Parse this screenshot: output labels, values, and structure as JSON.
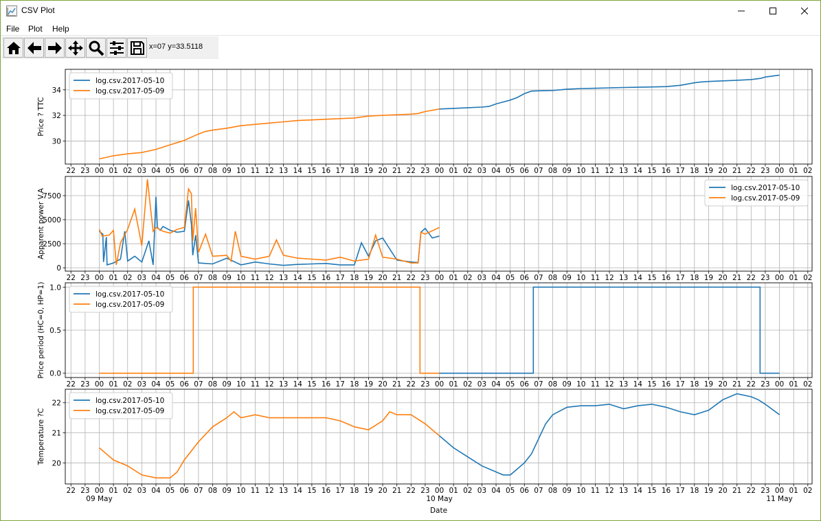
{
  "window": {
    "title": "CSV Plot",
    "controls": {
      "minimize": "minimize-icon",
      "maximize": "maximize-icon",
      "close": "close-icon"
    }
  },
  "menu": {
    "items": [
      "File",
      "Plot",
      "Help"
    ]
  },
  "toolbar": {
    "tools": [
      "home-icon",
      "back-arrow-icon",
      "forward-arrow-icon",
      "pan-icon",
      "zoom-icon",
      "subplots-config-icon",
      "save-icon"
    ],
    "coordinates": "x=07 y=33.5118"
  },
  "colors": {
    "series_2017_05_10": "#1f77b4",
    "series_2017_05_09": "#ff7f0e",
    "grid": "#b0b0b0",
    "window_border": "#7da33a"
  },
  "chart_data": [
    {
      "type": "line",
      "ylabel": "Price ? TTC",
      "ylim": [
        28.2,
        35.6
      ],
      "yticks": [
        30,
        32,
        34
      ],
      "ytick_labels": [
        "30",
        "32",
        "34"
      ],
      "grid": true,
      "legend": "top-left",
      "series": [
        {
          "name": "log.csv.2017-05-10",
          "color": "#1f77b4",
          "x": [
            24,
            25,
            26,
            27,
            27.5,
            28,
            28.5,
            29,
            29.5,
            30,
            30.5,
            31,
            31.5,
            32,
            33,
            34,
            35,
            36,
            37,
            38,
            39,
            40,
            41,
            42,
            42.4,
            43,
            44,
            45,
            46,
            46.7,
            47,
            48
          ],
          "y": [
            32.5,
            32.55,
            32.6,
            32.65,
            32.7,
            32.9,
            33.05,
            33.2,
            33.4,
            33.7,
            33.9,
            33.92,
            33.93,
            33.95,
            34.05,
            34.1,
            34.12,
            34.15,
            34.18,
            34.2,
            34.22,
            34.25,
            34.35,
            34.55,
            34.6,
            34.65,
            34.7,
            34.75,
            34.8,
            34.9,
            35.0,
            35.15
          ]
        },
        {
          "name": "log.csv.2017-05-09",
          "color": "#ff7f0e",
          "x": [
            0,
            1,
            2,
            3,
            4,
            5,
            6,
            6.5,
            7,
            7.5,
            8,
            9,
            10,
            11,
            12,
            13,
            14,
            15,
            16,
            17,
            18,
            19,
            20,
            21,
            22,
            22.5,
            23,
            24
          ],
          "y": [
            28.6,
            28.85,
            29.0,
            29.1,
            29.35,
            29.7,
            30.05,
            30.3,
            30.55,
            30.75,
            30.85,
            31.0,
            31.2,
            31.3,
            31.4,
            31.5,
            31.6,
            31.65,
            31.7,
            31.75,
            31.8,
            31.95,
            32.0,
            32.05,
            32.1,
            32.15,
            32.3,
            32.5
          ]
        }
      ]
    },
    {
      "type": "line",
      "ylabel": "Apparent power V.A",
      "ylim": [
        -350,
        9500
      ],
      "yticks": [
        0,
        2500,
        5000,
        7500
      ],
      "ytick_labels": [
        "0",
        "2500",
        "5000",
        "7500"
      ],
      "grid": true,
      "legend": "top-right",
      "series": [
        {
          "name": "log.csv.2017-05-10",
          "color": "#1f77b4",
          "x": [
            0,
            0.25,
            0.3,
            0.5,
            0.55,
            1,
            1.5,
            1.8,
            2,
            2.5,
            3,
            3.5,
            3.8,
            4,
            4.1,
            4.3,
            4.5,
            5,
            5.5,
            6,
            6.3,
            6.5,
            6.6,
            6.8,
            7,
            8,
            9,
            10,
            11,
            12,
            13,
            14,
            15,
            16,
            17,
            18,
            18.5,
            19,
            19.5,
            20,
            21,
            22,
            22.5,
            22.7,
            23,
            23.5,
            24
          ],
          "y": [
            3800,
            3500,
            600,
            3200,
            300,
            500,
            900,
            3800,
            700,
            1200,
            600,
            2800,
            300,
            7400,
            4200,
            3900,
            4300,
            3900,
            3700,
            3800,
            7000,
            4500,
            1300,
            3400,
            500,
            400,
            1000,
            300,
            600,
            400,
            250,
            350,
            400,
            450,
            300,
            300,
            2600,
            1200,
            2800,
            3100,
            800,
            600,
            550,
            3700,
            4100,
            3100,
            3300
          ]
        },
        {
          "name": "log.csv.2017-05-09",
          "color": "#ff7f0e",
          "x": [
            0,
            0.2,
            0.7,
            1,
            1.2,
            1.5,
            2,
            2.5,
            3,
            3.4,
            3.6,
            3.8,
            4,
            4.5,
            5,
            5.5,
            6,
            6.3,
            6.5,
            6.6,
            6.8,
            7,
            7.5,
            8,
            9,
            9.3,
            9.6,
            10,
            11,
            12,
            12.5,
            13,
            14,
            15,
            16,
            17,
            18,
            19,
            19.5,
            20,
            21,
            22,
            22.5,
            22.7,
            23,
            24
          ],
          "y": [
            4000,
            3300,
            3400,
            3900,
            300,
            2600,
            4000,
            6100,
            2300,
            9200,
            6400,
            3800,
            4200,
            3800,
            3600,
            4000,
            4200,
            8200,
            7700,
            2800,
            6200,
            1600,
            3500,
            1200,
            1300,
            700,
            3800,
            1200,
            900,
            1200,
            2900,
            1300,
            1000,
            900,
            800,
            1100,
            700,
            900,
            3400,
            1100,
            900,
            500,
            500,
            3700,
            3500,
            4200
          ]
        }
      ]
    },
    {
      "type": "line",
      "ylabel": "Price period (HC=0, HP=1)",
      "ylim": [
        -0.05,
        1.05
      ],
      "yticks": [
        0.0,
        0.5,
        1.0
      ],
      "ytick_labels": [
        "0.0",
        "0.5",
        "1.0"
      ],
      "grid": true,
      "legend": "top-left",
      "series": [
        {
          "name": "log.csv.2017-05-10",
          "color": "#1f77b4",
          "x": [
            24,
            30.63,
            30.63,
            46.63,
            46.63,
            48
          ],
          "y": [
            0,
            0,
            1,
            1,
            0,
            0
          ]
        },
        {
          "name": "log.csv.2017-05-09",
          "color": "#ff7f0e",
          "x": [
            0,
            6.63,
            6.63,
            22.63,
            22.63,
            24
          ],
          "y": [
            0,
            0,
            1,
            1,
            0,
            0
          ]
        }
      ]
    },
    {
      "type": "line",
      "ylabel": "Temperature ?C",
      "ylim": [
        19.3,
        22.45
      ],
      "yticks": [
        20,
        21,
        22
      ],
      "ytick_labels": [
        "20",
        "21",
        "22"
      ],
      "xlabel": "Date",
      "grid": true,
      "legend": "top-left",
      "series": [
        {
          "name": "log.csv.2017-05-10",
          "color": "#1f77b4",
          "x": [
            24,
            25,
            26,
            27,
            28,
            28.5,
            29,
            29.5,
            30,
            30.5,
            31,
            31.5,
            32,
            33,
            34,
            35,
            36,
            37,
            38,
            39,
            40,
            41,
            42,
            43,
            44,
            45,
            46,
            46.5,
            47,
            48
          ],
          "y": [
            20.9,
            20.5,
            20.2,
            19.9,
            19.7,
            19.6,
            19.6,
            19.8,
            20.0,
            20.3,
            20.8,
            21.3,
            21.6,
            21.85,
            21.9,
            21.9,
            21.95,
            21.8,
            21.9,
            21.95,
            21.85,
            21.7,
            21.6,
            21.75,
            22.1,
            22.3,
            22.2,
            22.1,
            21.95,
            21.6
          ]
        },
        {
          "name": "log.csv.2017-05-09",
          "color": "#ff7f0e",
          "x": [
            0,
            0.5,
            1,
            2,
            3,
            4,
            5,
            5.5,
            6,
            7,
            8,
            9,
            9.5,
            10,
            11,
            12,
            13,
            14,
            15,
            16,
            17,
            18,
            19,
            20,
            20.5,
            21,
            22,
            23,
            24
          ],
          "y": [
            20.5,
            20.3,
            20.1,
            19.9,
            19.6,
            19.5,
            19.5,
            19.7,
            20.1,
            20.7,
            21.2,
            21.5,
            21.7,
            21.5,
            21.6,
            21.5,
            21.5,
            21.5,
            21.5,
            21.5,
            21.4,
            21.2,
            21.1,
            21.4,
            21.7,
            21.6,
            21.6,
            21.3,
            20.9
          ]
        }
      ]
    }
  ],
  "x_axis": {
    "xlim": [
      -2.4,
      50.3
    ],
    "hour_tick_labels": [
      "22",
      "23",
      "00",
      "01",
      "02",
      "03",
      "04",
      "05",
      "06",
      "07",
      "08",
      "09",
      "10",
      "11",
      "12",
      "13",
      "14",
      "15",
      "16",
      "17",
      "18",
      "19",
      "20",
      "21",
      "22",
      "23",
      "00",
      "01",
      "02",
      "03",
      "04",
      "05",
      "06",
      "07",
      "08",
      "09",
      "10",
      "11",
      "12",
      "13",
      "14",
      "15",
      "16",
      "17",
      "18",
      "19",
      "20",
      "21",
      "22",
      "23",
      "00",
      "01",
      "02"
    ],
    "date_labels": [
      "09 May",
      "10 May",
      "11 May"
    ],
    "xlabel": "Date"
  }
}
